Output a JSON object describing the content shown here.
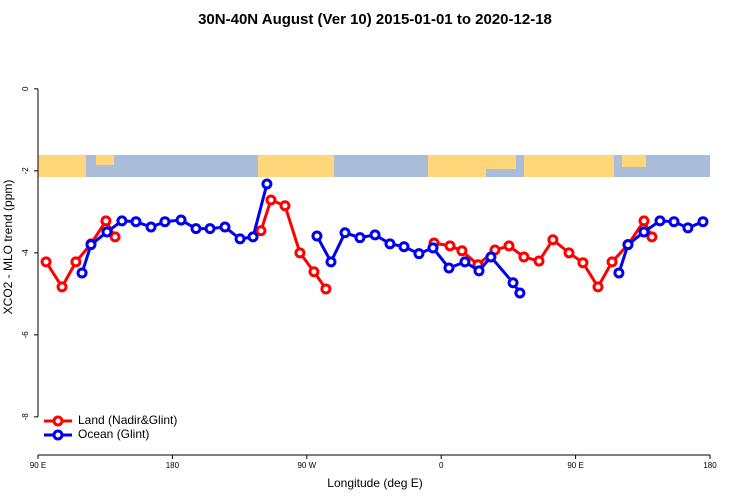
{
  "chart_data": {
    "type": "line",
    "title": "30N-40N August (Ver 10)   2015-01-01 to 2020-12-18",
    "x_label": "Longitude (deg E)",
    "y_label": "XCO2 - MLO trend (ppm)",
    "xlim": [
      90,
      540
    ],
    "ylim": [
      -8.93,
      1.24
    ],
    "xticks": [
      {
        "value": 90,
        "label": "90 E"
      },
      {
        "value": 180,
        "label": "180"
      },
      {
        "value": 270,
        "label": "90 W"
      },
      {
        "value": 360,
        "label": "0"
      },
      {
        "value": 450,
        "label": "90 E"
      },
      {
        "value": 540,
        "label": "180"
      }
    ],
    "yticks": [
      -8,
      -6,
      -4,
      -2,
      0
    ],
    "legend": "bottom-left",
    "series": [
      {
        "name": "Land (Nadir&Glint)",
        "color": "#ff0000",
        "x": [
          95.4,
          106.1,
          115.4,
          125.5,
          135.5,
          141.6,
          null,
          239.3,
          246.0,
          255.4,
          265.4,
          274.8,
          282.8,
          null,
          355.2,
          365.9,
          373.9,
          384.6,
          396.0,
          405.4,
          415.4,
          425.5,
          434.8,
          445.6,
          454.9,
          465.0,
          474.4,
          485.1,
          495.8,
          501.1
        ],
        "values": [
          -4.22,
          -4.83,
          -4.22,
          -3.78,
          -3.22,
          -3.61,
          null,
          -3.46,
          -2.71,
          -2.85,
          -4.0,
          -4.46,
          -4.88,
          null,
          -3.76,
          -3.83,
          -3.95,
          -4.29,
          -3.93,
          -3.83,
          -4.1,
          -4.2,
          -3.68,
          -4.0,
          -4.24,
          -4.83,
          -4.22,
          -3.8,
          -3.22,
          -3.61
        ]
      },
      {
        "name": "Ocean (Glint)",
        "color": "#0000ee",
        "x": [
          119.5,
          125.5,
          136.2,
          146.2,
          155.6,
          165.7,
          175.0,
          185.8,
          195.8,
          205.2,
          215.2,
          225.3,
          234.0,
          243.3,
          null,
          276.8,
          286.2,
          295.6,
          305.6,
          315.7,
          325.7,
          335.1,
          345.1,
          354.5,
          365.2,
          375.9,
          385.3,
          393.3,
          408.1,
          412.7,
          null,
          479.0,
          485.1,
          495.8,
          506.5,
          515.9,
          525.2,
          535.3
        ],
        "values": [
          -4.49,
          -3.8,
          -3.49,
          -3.22,
          -3.24,
          -3.37,
          -3.24,
          -3.2,
          -3.41,
          -3.41,
          -3.37,
          -3.66,
          -3.61,
          -2.32,
          null,
          -3.59,
          -4.22,
          -3.51,
          -3.63,
          -3.56,
          -3.78,
          -3.85,
          -4.02,
          -3.88,
          -4.37,
          -4.22,
          -4.44,
          -4.1,
          -4.73,
          -4.98,
          null,
          -4.49,
          -3.8,
          -3.49,
          -3.22,
          -3.24,
          -3.39,
          -3.24
        ]
      }
    ]
  }
}
